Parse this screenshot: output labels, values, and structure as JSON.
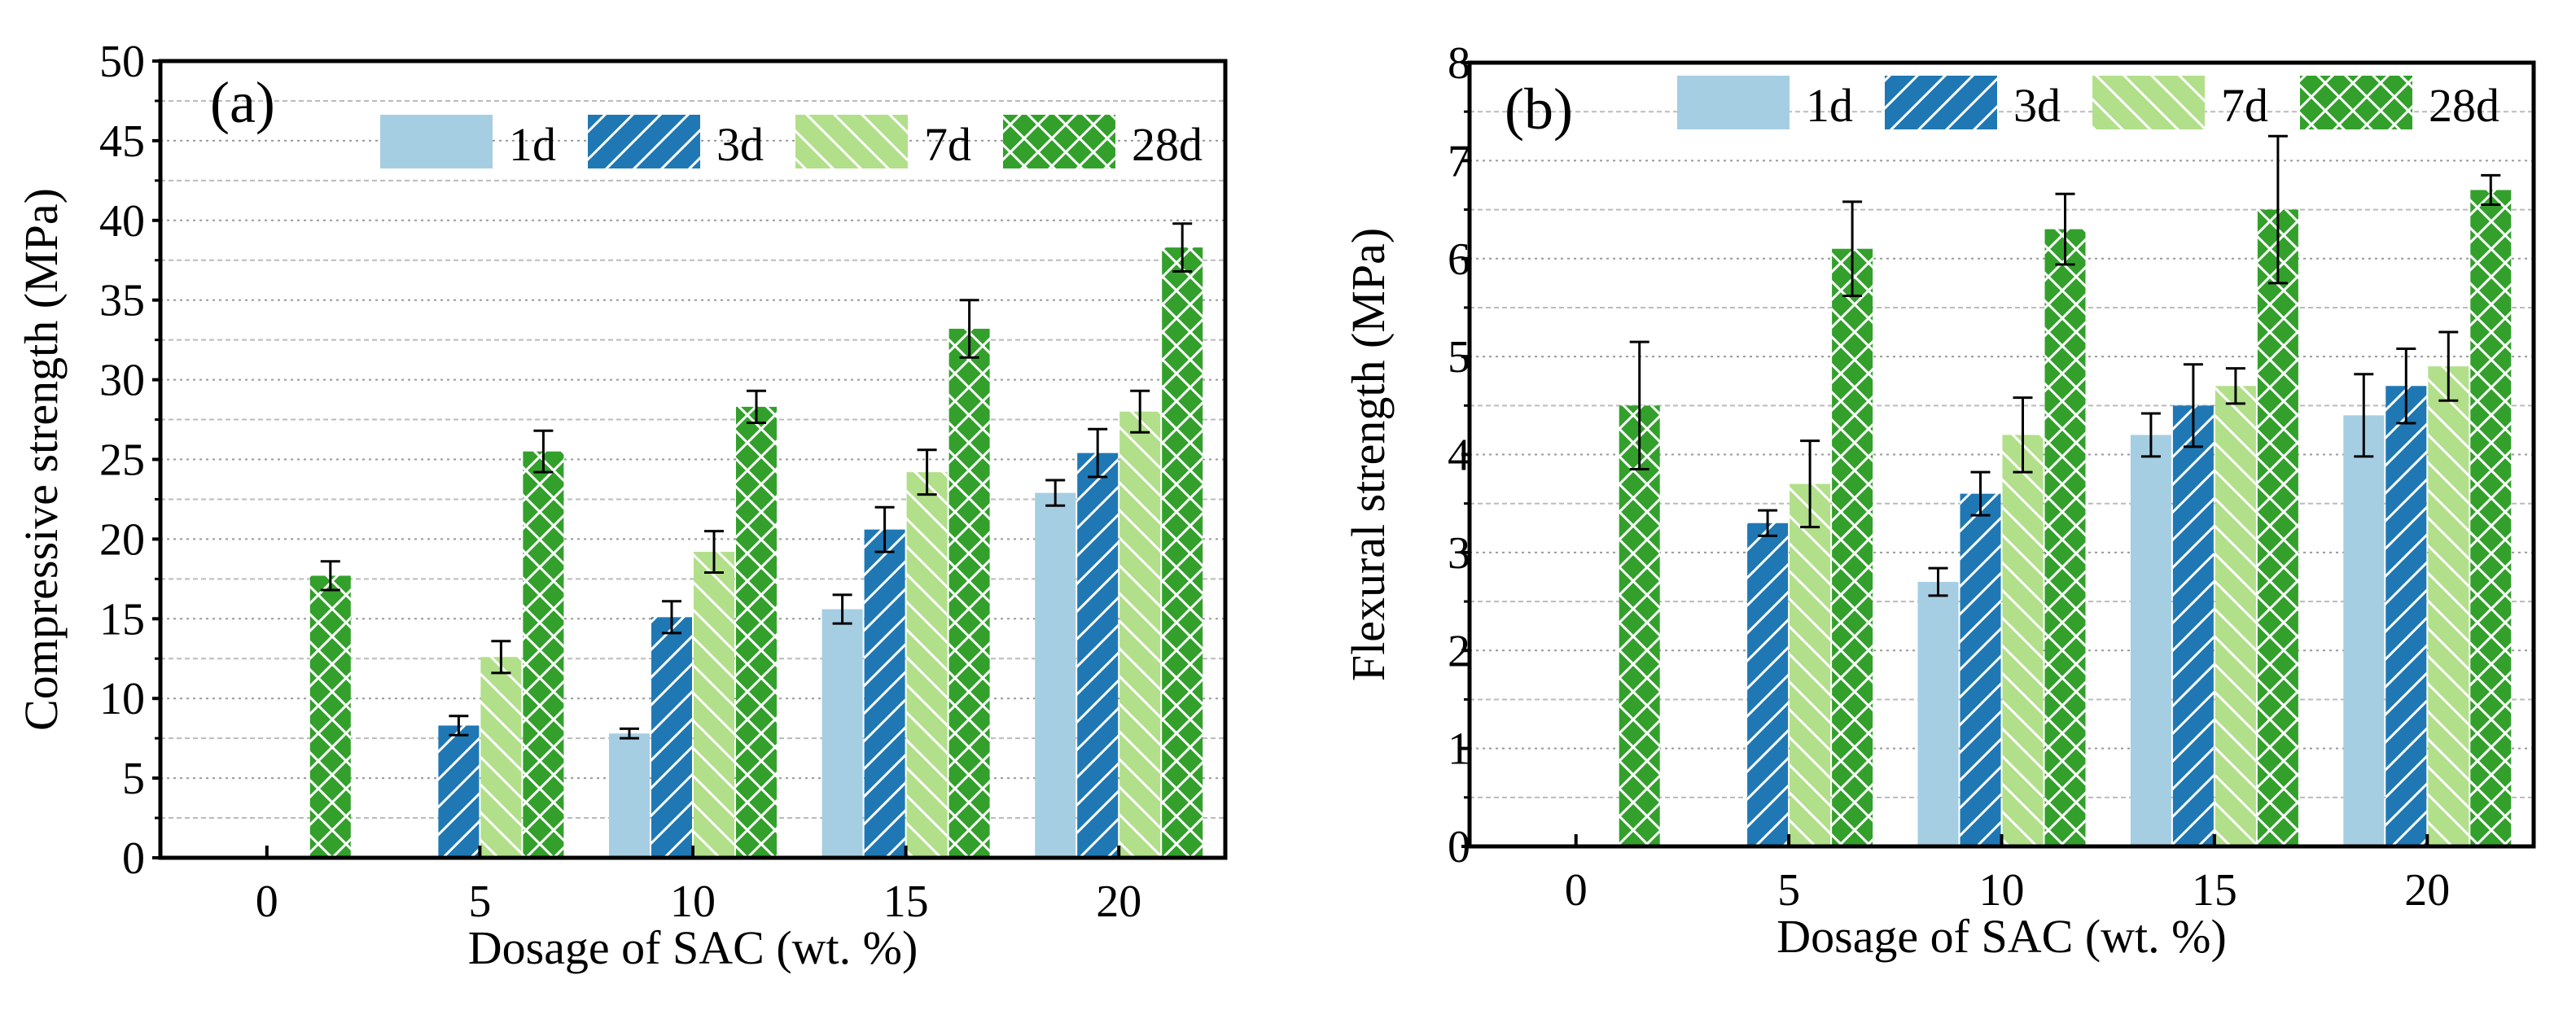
{
  "colors": {
    "d1": "#a6cee3",
    "d3": "#1f78b4",
    "d7": "#b2df8a",
    "d28": "#33a02c"
  },
  "chart_data": [
    {
      "type": "bar",
      "panel_label": "(a)",
      "xlabel": "Dosage of SAC (wt. %)",
      "ylabel": "Compressive strength (MPa)",
      "categories": [
        "0",
        "5",
        "10",
        "15",
        "20"
      ],
      "ylim": [
        0,
        50
      ],
      "yticks": [
        0,
        5,
        10,
        15,
        20,
        25,
        30,
        35,
        40,
        45,
        50
      ],
      "grid": true,
      "legend_position": "top-right",
      "series": [
        {
          "name": "1d",
          "values": [
            0,
            0,
            7.8,
            15.6,
            22.9
          ],
          "errors": [
            0,
            0,
            0.3,
            0.9,
            0.8
          ]
        },
        {
          "name": "3d",
          "values": [
            0,
            8.3,
            15.1,
            20.6,
            25.4
          ],
          "errors": [
            0,
            0.6,
            1.0,
            1.4,
            1.5
          ]
        },
        {
          "name": "7d",
          "values": [
            0,
            12.6,
            19.2,
            24.2,
            28.0
          ],
          "errors": [
            0,
            1.0,
            1.3,
            1.4,
            1.3
          ]
        },
        {
          "name": "28d",
          "values": [
            17.7,
            25.5,
            28.3,
            33.2,
            38.3
          ],
          "errors": [
            0.9,
            1.3,
            1.0,
            1.8,
            1.5
          ]
        }
      ]
    },
    {
      "type": "bar",
      "panel_label": "(b)",
      "xlabel": "Dosage of SAC (wt. %)",
      "ylabel": "Flexural strength (MPa)",
      "categories": [
        "0",
        "5",
        "10",
        "15",
        "20"
      ],
      "ylim": [
        0,
        8
      ],
      "yticks": [
        0,
        1,
        2,
        3,
        4,
        5,
        6,
        7,
        8
      ],
      "grid": true,
      "legend_position": "top",
      "series": [
        {
          "name": "1d",
          "values": [
            0,
            0,
            2.7,
            4.2,
            4.4
          ],
          "errors": [
            0,
            0,
            0.14,
            0.22,
            0.42
          ]
        },
        {
          "name": "3d",
          "values": [
            0,
            3.3,
            3.6,
            4.5,
            4.7
          ],
          "errors": [
            0,
            0.13,
            0.22,
            0.42,
            0.38
          ]
        },
        {
          "name": "7d",
          "values": [
            0,
            3.7,
            4.2,
            4.7,
            4.9
          ],
          "errors": [
            0,
            0.44,
            0.38,
            0.18,
            0.35
          ]
        },
        {
          "name": "28d",
          "values": [
            4.5,
            6.1,
            6.3,
            6.5,
            6.7
          ],
          "errors": [
            0.65,
            0.48,
            0.36,
            0.75,
            0.15
          ]
        }
      ]
    }
  ]
}
